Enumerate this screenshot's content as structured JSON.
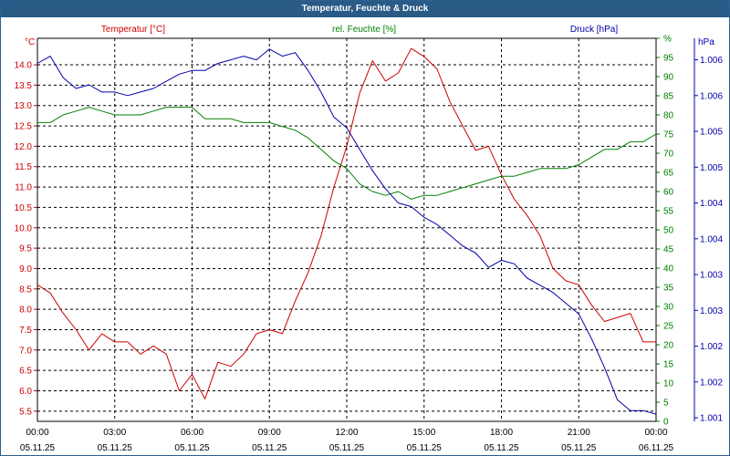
{
  "window_title": "Temperatur, Feuchte & Druck",
  "chart_data": {
    "type": "line",
    "title": "Temperatur, Feuchte & Druck",
    "colors": {
      "temp": "#cc0000",
      "hum": "#008000",
      "press": "#0000aa",
      "grid": "#000000",
      "titlebar": "#2a5a86"
    },
    "x_ticks": [
      {
        "time": "00:00",
        "date": "05.11.25"
      },
      {
        "time": "03:00",
        "date": "05.11.25"
      },
      {
        "time": "06:00",
        "date": "05.11.25"
      },
      {
        "time": "09:00",
        "date": "05.11.25"
      },
      {
        "time": "12:00",
        "date": "05.11.25"
      },
      {
        "time": "15:00",
        "date": "05.11.25"
      },
      {
        "time": "18:00",
        "date": "05.11.25"
      },
      {
        "time": "21:00",
        "date": "05.11.25"
      },
      {
        "time": "00:00",
        "date": "06.11.25"
      }
    ],
    "x_range_hours": [
      0,
      24
    ],
    "axes": {
      "temp": {
        "label": "Temperatur [°C]",
        "unit": "°C",
        "range": [
          5.25,
          14.65
        ],
        "ticks": [
          "5.5",
          "6.0",
          "6.5",
          "7.0",
          "7.5",
          "8.0",
          "8.5",
          "9.0",
          "9.5",
          "10.0",
          "10.5",
          "11.0",
          "11.5",
          "12.0",
          "12.5",
          "13.0",
          "13.5",
          "14.0"
        ]
      },
      "hum": {
        "label": "rel. Feuchte [%]",
        "unit": "%",
        "range": [
          0,
          100
        ],
        "ticks": [
          "0",
          "5",
          "10",
          "15",
          "20",
          "25",
          "30",
          "35",
          "40",
          "45",
          "50",
          "55",
          "60",
          "65",
          "70",
          "75",
          "80",
          "85",
          "90",
          "95",
          "%"
        ]
      },
      "press": {
        "label": "Druck [hPa]",
        "unit": "hPa",
        "range": [
          1000.95,
          1006.3
        ],
        "ticks": [
          "1.001",
          "1.002",
          "1.002",
          "1.003",
          "1.003",
          "1.004",
          "1.004",
          "1.005",
          "1.005",
          "1.006",
          "1.006"
        ]
      }
    },
    "series": [
      {
        "name": "Temperatur [°C]",
        "axis": "temp",
        "x_hours": [
          0,
          0.5,
          1,
          1.5,
          2,
          2.5,
          3,
          3.5,
          4,
          4.5,
          5,
          5.5,
          6,
          6.5,
          7,
          7.5,
          8,
          8.5,
          9,
          9.5,
          10,
          10.5,
          11,
          11.5,
          12,
          12.5,
          13,
          13.5,
          14,
          14.5,
          15,
          15.5,
          16,
          16.5,
          17,
          17.5,
          18,
          18.5,
          19,
          19.5,
          20,
          20.5,
          21,
          21.5,
          22,
          22.5,
          23,
          23.5,
          24
        ],
        "values": [
          8.6,
          8.4,
          7.9,
          7.5,
          7.0,
          7.4,
          7.2,
          7.2,
          6.9,
          7.1,
          6.9,
          6.0,
          6.4,
          5.8,
          6.7,
          6.6,
          6.9,
          7.4,
          7.5,
          7.4,
          8.2,
          8.9,
          9.8,
          11.0,
          12.0,
          13.3,
          14.1,
          13.6,
          13.8,
          14.4,
          14.2,
          13.9,
          13.1,
          12.5,
          11.9,
          12.0,
          11.3,
          10.7,
          10.3,
          9.8,
          9.0,
          8.7,
          8.6,
          8.1,
          7.7,
          7.8,
          7.9,
          7.2,
          7.2
        ]
      },
      {
        "name": "rel. Feuchte [%]",
        "axis": "hum",
        "x_hours": [
          0,
          0.5,
          1,
          1.5,
          2,
          2.5,
          3,
          3.5,
          4,
          4.5,
          5,
          5.5,
          6,
          6.5,
          7,
          7.5,
          8,
          8.5,
          9,
          9.5,
          10,
          10.5,
          11,
          11.5,
          12,
          12.5,
          13,
          13.5,
          14,
          14.5,
          15,
          15.5,
          16,
          16.5,
          17,
          17.5,
          18,
          18.5,
          19,
          19.5,
          20,
          20.5,
          21,
          21.5,
          22,
          22.5,
          23,
          23.5,
          24
        ],
        "values": [
          78,
          78,
          80,
          81,
          82,
          81,
          80,
          80,
          80,
          81,
          82,
          82,
          82,
          79,
          79,
          79,
          78,
          78,
          78,
          77,
          76,
          74,
          71,
          68,
          66,
          62,
          60,
          59,
          60,
          58,
          59,
          59,
          60,
          61,
          62,
          63,
          64,
          64,
          65,
          66,
          66,
          66,
          67,
          69,
          71,
          71,
          73,
          73,
          75
        ]
      },
      {
        "name": "Druck [hPa]",
        "axis": "press",
        "x_hours": [
          0,
          0.5,
          1,
          1.5,
          2,
          2.5,
          3,
          3.5,
          4,
          4.5,
          5,
          5.5,
          6,
          6.5,
          7,
          7.5,
          8,
          8.5,
          9,
          9.5,
          10,
          10.5,
          11,
          11.5,
          12,
          12.5,
          13,
          13.5,
          14,
          14.5,
          15,
          15.5,
          16,
          16.5,
          17,
          17.5,
          18,
          18.5,
          19,
          19.5,
          20,
          20.5,
          21,
          21.5,
          22,
          22.5,
          23,
          23.5,
          24
        ],
        "values": [
          1005.95,
          1006.05,
          1005.75,
          1005.6,
          1005.65,
          1005.55,
          1005.55,
          1005.5,
          1005.55,
          1005.6,
          1005.7,
          1005.8,
          1005.85,
          1005.85,
          1005.95,
          1006.0,
          1006.05,
          1006.0,
          1006.15,
          1006.05,
          1006.1,
          1005.85,
          1005.55,
          1005.2,
          1005.05,
          1004.75,
          1004.45,
          1004.2,
          1004.0,
          1003.95,
          1003.8,
          1003.7,
          1003.55,
          1003.4,
          1003.3,
          1003.1,
          1003.2,
          1003.15,
          1002.95,
          1002.85,
          1002.75,
          1002.6,
          1002.45,
          1002.1,
          1001.7,
          1001.25,
          1001.1,
          1001.1,
          1001.05
        ]
      }
    ]
  }
}
